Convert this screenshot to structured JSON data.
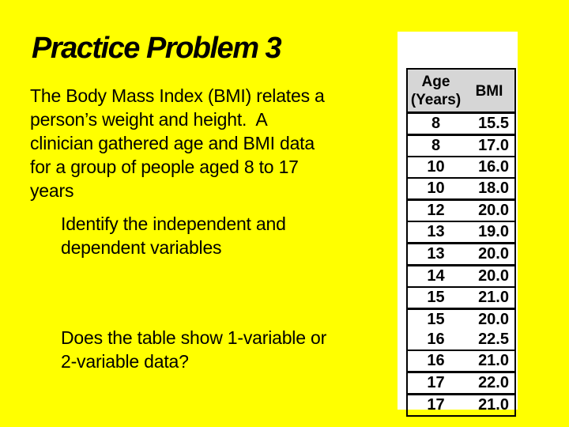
{
  "slide": {
    "title": "Practice Problem 3",
    "paragraph1_lines": [
      "The Body Mass Index (BMI) relates a",
      "person’s weight and height.  A",
      "clinician gathered age and BMI data",
      "for a group of people aged 8 to 17",
      "years"
    ],
    "paragraph2_lines": [
      "Identify the independent and",
      "dependent variables"
    ],
    "paragraph3_lines": [
      "Does the table show 1-variable or",
      "2-variable data?"
    ]
  },
  "table": {
    "col1_header_line1": "Age",
    "col1_header_line2": "(Years)",
    "col2_header": "BMI",
    "rows": [
      {
        "age": "8",
        "bmi": "15.5"
      },
      {
        "age": "8",
        "bmi": "17.0"
      },
      {
        "age": "10",
        "bmi": "16.0"
      },
      {
        "age": "10",
        "bmi": "18.0"
      },
      {
        "age": "12",
        "bmi": "20.0"
      },
      {
        "age": "13",
        "bmi": "19.0"
      },
      {
        "age": "13",
        "bmi": "20.0"
      },
      {
        "age": "14",
        "bmi": "20.0"
      },
      {
        "age": "15",
        "bmi": "21.0"
      },
      {
        "age": "15",
        "bmi": "20.0"
      },
      {
        "age": "16",
        "bmi": "22.5"
      },
      {
        "age": "16",
        "bmi": "21.0"
      },
      {
        "age": "17",
        "bmi": "22.0"
      },
      {
        "age": "17",
        "bmi": "21.0"
      }
    ]
  },
  "colors": {
    "background": "#FFFF00",
    "panel": "#FFFFFF",
    "table_header_bg": "#D6D6D6",
    "text": "#000000"
  }
}
